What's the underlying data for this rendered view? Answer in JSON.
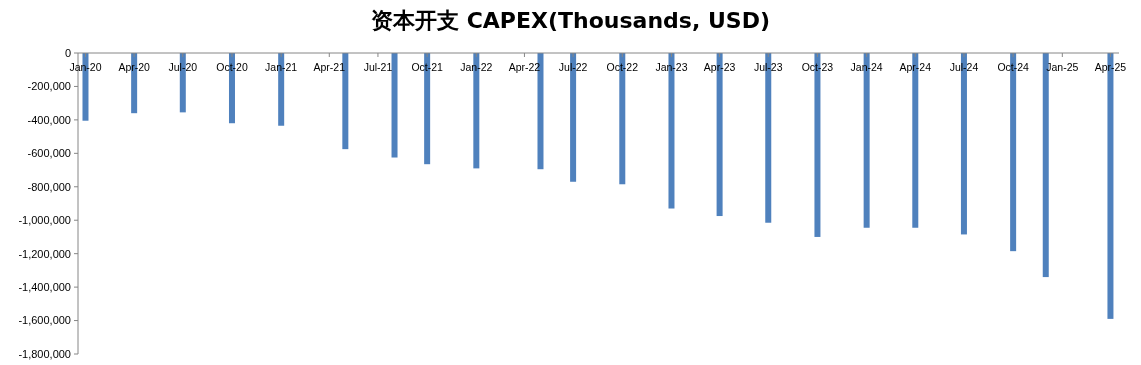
{
  "chart_data": {
    "type": "bar",
    "title": "资本开支 CAPEX(Thousands, USD)",
    "x": [
      "2020-01-15",
      "2020-04-15",
      "2020-07-15",
      "2020-10-15",
      "2021-01-15",
      "2021-05-15",
      "2021-08-15",
      "2021-10-15",
      "2022-01-15",
      "2022-05-15",
      "2022-07-15",
      "2022-10-15",
      "2023-01-15",
      "2023-04-15",
      "2023-07-15",
      "2023-10-15",
      "2024-01-15",
      "2024-04-15",
      "2024-07-15",
      "2024-10-15",
      "2024-12-15",
      "2025-04-15"
    ],
    "series": [
      {
        "color": "#4f81bd",
        "values": [
          -405000,
          -360000,
          -355000,
          -420000,
          -435000,
          -575000,
          -625000,
          -665000,
          -690000,
          -695000,
          -770000,
          -785000,
          -930000,
          -975000,
          -1015000,
          -1100000,
          -1045000,
          -1045000,
          -1085000,
          -1185000,
          -1340000,
          -1590000
        ]
      }
    ],
    "xlim": [
      "2020-01-01",
      "2025-05-01"
    ],
    "xticks": [
      {
        "value": "2020-01-15",
        "label": "Jan-20"
      },
      {
        "value": "2020-04-15",
        "label": "Apr-20"
      },
      {
        "value": "2020-07-15",
        "label": "Jul-20"
      },
      {
        "value": "2020-10-15",
        "label": "Oct-20"
      },
      {
        "value": "2021-01-15",
        "label": "Jan-21"
      },
      {
        "value": "2021-04-15",
        "label": "Apr-21"
      },
      {
        "value": "2021-07-15",
        "label": "Jul-21"
      },
      {
        "value": "2021-10-15",
        "label": "Oct-21"
      },
      {
        "value": "2022-01-15",
        "label": "Jan-22"
      },
      {
        "value": "2022-04-15",
        "label": "Apr-22"
      },
      {
        "value": "2022-07-15",
        "label": "Jul-22"
      },
      {
        "value": "2022-10-15",
        "label": "Oct-22"
      },
      {
        "value": "2023-01-15",
        "label": "Jan-23"
      },
      {
        "value": "2023-04-15",
        "label": "Apr-23"
      },
      {
        "value": "2023-07-15",
        "label": "Jul-23"
      },
      {
        "value": "2023-10-15",
        "label": "Oct-23"
      },
      {
        "value": "2024-01-15",
        "label": "Jan-24"
      },
      {
        "value": "2024-04-15",
        "label": "Apr-24"
      },
      {
        "value": "2024-07-15",
        "label": "Jul-24"
      },
      {
        "value": "2024-10-15",
        "label": "Oct-24"
      },
      {
        "value": "2025-01-15",
        "label": "Jan-25"
      },
      {
        "value": "2025-04-15",
        "label": "Apr-25"
      }
    ],
    "ylim": [
      -1800000,
      0
    ],
    "yticks": [
      {
        "value": 0,
        "label": "0"
      },
      {
        "value": -200000,
        "label": "-200,000"
      },
      {
        "value": -400000,
        "label": "-400,000"
      },
      {
        "value": -600000,
        "label": "-600,000"
      },
      {
        "value": -800000,
        "label": "-800,000"
      },
      {
        "value": -1000000,
        "label": "-1,000,000"
      },
      {
        "value": -1200000,
        "label": "-1,200,000"
      },
      {
        "value": -1400000,
        "label": "-1,400,000"
      },
      {
        "value": -1600000,
        "label": "-1,600,000"
      },
      {
        "value": -1800000,
        "label": "-1,800,000"
      }
    ],
    "grid": false
  }
}
